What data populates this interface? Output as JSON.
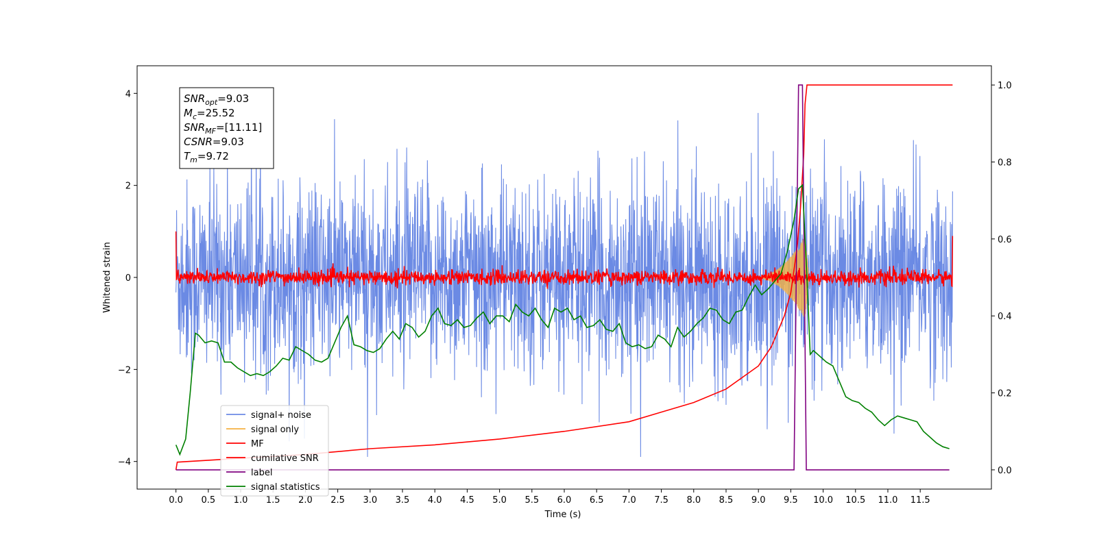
{
  "chart_data": {
    "type": "line",
    "xlabel": "Time (s)",
    "ylabel": "Whitened strain",
    "xlim": [
      -0.6,
      12.6
    ],
    "ylim": [
      -4.6,
      4.6
    ],
    "ylim_right": [
      -0.05,
      1.05
    ],
    "x_ticks": [
      "0.0",
      "0.5",
      "1.0",
      "1.5",
      "2.0",
      "2.5",
      "3.0",
      "3.5",
      "4.0",
      "4.5",
      "5.0",
      "5.5",
      "6.0",
      "6.5",
      "7.0",
      "7.5",
      "8.0",
      "8.5",
      "9.0",
      "9.5",
      "10.0",
      "10.5",
      "11.0",
      "11.5"
    ],
    "y_ticks_left": [
      "4",
      "2",
      "0",
      "−2",
      "−4"
    ],
    "y_ticks_right": [
      "1.0",
      "0.8",
      "0.6",
      "0.4",
      "0.2",
      "0.0"
    ],
    "grid": false,
    "legend_position": "lower-left",
    "annotation": {
      "lines": [
        {
          "var": "SNR",
          "sub": "opt",
          "value": "=9.03"
        },
        {
          "var": "M",
          "sub": "c",
          "value": "=25.52"
        },
        {
          "var": "SNR",
          "sub": "MF",
          "value": "=[11.11]"
        },
        {
          "var": "CSNR",
          "sub": "",
          "value": "=9.03"
        },
        {
          "var": "T",
          "sub": "m",
          "value": "=9.72"
        }
      ]
    },
    "series": [
      {
        "name": "signal+ noise",
        "axis": "left",
        "color": "#6b8ae4",
        "kind": "noise",
        "x_range": [
          0,
          12
        ],
        "noise_std": 1.0,
        "envelope_min": [
          -3.7,
          -3.9
        ],
        "envelope_max": [
          4.2,
          3.4
        ]
      },
      {
        "name": "signal only",
        "axis": "left",
        "color": "#f5b041",
        "kind": "chirp",
        "x_range": [
          0,
          12
        ],
        "peak_time": 9.72,
        "peak_amplitude": 0.9
      },
      {
        "name": "MF",
        "axis": "left",
        "color": "#ff0000",
        "kind": "noise",
        "x_range": [
          0,
          12
        ],
        "baseline": 0.0,
        "noise_std": 0.08,
        "start_value": 1.0,
        "end_value": 0.9
      },
      {
        "name": "cumilative SNR",
        "axis": "right",
        "color": "#ff0000",
        "kind": "curve",
        "x": [
          0.0,
          0.02,
          1.0,
          2.0,
          3.0,
          4.0,
          5.0,
          6.0,
          7.0,
          7.5,
          8.0,
          8.5,
          9.0,
          9.2,
          9.4,
          9.5,
          9.6,
          9.65,
          9.7,
          9.72,
          9.75,
          10.0,
          11.0,
          12.0
        ],
        "y": [
          0.0,
          0.02,
          0.03,
          0.04,
          0.055,
          0.065,
          0.08,
          0.1,
          0.125,
          0.15,
          0.175,
          0.21,
          0.27,
          0.32,
          0.4,
          0.46,
          0.58,
          0.68,
          0.82,
          0.95,
          1.0,
          1.0,
          1.0,
          1.0
        ]
      },
      {
        "name": "label",
        "axis": "right",
        "color": "#800080",
        "kind": "step",
        "x": [
          0.0,
          9.55,
          9.62,
          9.68,
          9.74,
          11.95
        ],
        "y": [
          0.0,
          0.0,
          1.0,
          1.0,
          0.0,
          0.0
        ],
        "extra_spike": {
          "x": 3.15,
          "y": 0.0
        }
      },
      {
        "name": "signal statistics",
        "axis": "right",
        "color": "#008000",
        "kind": "line",
        "x": [
          0.0,
          0.06,
          0.15,
          0.22,
          0.3,
          0.35,
          0.45,
          0.55,
          0.65,
          0.75,
          0.85,
          0.95,
          1.05,
          1.15,
          1.25,
          1.35,
          1.45,
          1.55,
          1.65,
          1.75,
          1.85,
          1.95,
          2.05,
          2.15,
          2.25,
          2.35,
          2.45,
          2.55,
          2.65,
          2.75,
          2.85,
          2.95,
          3.05,
          3.15,
          3.25,
          3.35,
          3.45,
          3.55,
          3.65,
          3.75,
          3.85,
          3.95,
          4.05,
          4.15,
          4.25,
          4.35,
          4.45,
          4.55,
          4.65,
          4.75,
          4.85,
          4.95,
          5.05,
          5.15,
          5.25,
          5.35,
          5.45,
          5.55,
          5.65,
          5.75,
          5.85,
          5.95,
          6.05,
          6.15,
          6.25,
          6.35,
          6.45,
          6.55,
          6.65,
          6.75,
          6.85,
          6.95,
          7.05,
          7.15,
          7.25,
          7.35,
          7.45,
          7.55,
          7.65,
          7.75,
          7.85,
          7.95,
          8.05,
          8.15,
          8.25,
          8.35,
          8.45,
          8.55,
          8.65,
          8.75,
          8.85,
          8.95,
          9.05,
          9.15,
          9.25,
          9.35,
          9.45,
          9.55,
          9.62,
          9.68,
          9.75,
          9.8,
          9.85,
          9.95,
          10.05,
          10.15,
          10.25,
          10.35,
          10.45,
          10.55,
          10.65,
          10.75,
          10.85,
          10.95,
          11.05,
          11.15,
          11.25,
          11.35,
          11.45,
          11.55,
          11.65,
          11.75,
          11.85,
          11.95
        ],
        "y": [
          0.065,
          0.04,
          0.08,
          0.2,
          0.355,
          0.35,
          0.33,
          0.335,
          0.33,
          0.28,
          0.28,
          0.265,
          0.255,
          0.245,
          0.25,
          0.245,
          0.255,
          0.27,
          0.29,
          0.285,
          0.32,
          0.31,
          0.3,
          0.285,
          0.28,
          0.29,
          0.33,
          0.37,
          0.4,
          0.325,
          0.32,
          0.31,
          0.305,
          0.315,
          0.34,
          0.36,
          0.34,
          0.38,
          0.37,
          0.345,
          0.36,
          0.4,
          0.42,
          0.38,
          0.375,
          0.39,
          0.37,
          0.375,
          0.395,
          0.41,
          0.38,
          0.4,
          0.4,
          0.385,
          0.43,
          0.41,
          0.4,
          0.42,
          0.39,
          0.37,
          0.42,
          0.41,
          0.42,
          0.39,
          0.4,
          0.37,
          0.375,
          0.39,
          0.365,
          0.36,
          0.38,
          0.33,
          0.32,
          0.325,
          0.315,
          0.32,
          0.35,
          0.34,
          0.32,
          0.37,
          0.345,
          0.36,
          0.38,
          0.395,
          0.42,
          0.415,
          0.39,
          0.38,
          0.41,
          0.415,
          0.45,
          0.48,
          0.455,
          0.47,
          0.49,
          0.51,
          0.57,
          0.65,
          0.73,
          0.74,
          0.5,
          0.3,
          0.31,
          0.295,
          0.28,
          0.27,
          0.23,
          0.19,
          0.18,
          0.175,
          0.16,
          0.15,
          0.13,
          0.115,
          0.13,
          0.14,
          0.135,
          0.13,
          0.125,
          0.1,
          0.085,
          0.07,
          0.06,
          0.055
        ]
      }
    ]
  }
}
